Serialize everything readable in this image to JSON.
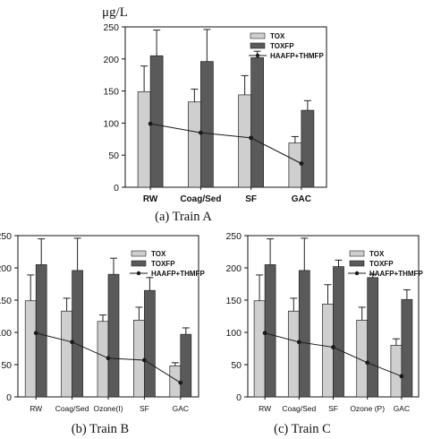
{
  "figure": {
    "unit_label": "μg/L",
    "captions": [
      "(a) Train A",
      "(b) Train B",
      "(c) Train C"
    ]
  },
  "colors": {
    "tox_fill": "#cfcfcf",
    "toxfp_fill": "#5a5a5a",
    "line": "#1a1a1a"
  },
  "chart_data": [
    {
      "type": "bar",
      "caption": "(a) Train A",
      "ylabel": "μg/L",
      "ylim": [
        0,
        250
      ],
      "yticks": [
        0,
        50,
        100,
        150,
        200,
        250
      ],
      "categories": [
        "RW",
        "Coag/Sed",
        "SF",
        "GAC"
      ],
      "legend_position": "top-right",
      "series": [
        {
          "name": "TOX",
          "type": "bar",
          "values": [
            149,
            133,
            144,
            69
          ],
          "errors": [
            40,
            20,
            30,
            10
          ]
        },
        {
          "name": "TOXFP",
          "type": "bar",
          "values": [
            205,
            196,
            202,
            120
          ],
          "errors": [
            40,
            50,
            10,
            15
          ]
        },
        {
          "name": "HAAFP+THMFP",
          "type": "line",
          "values": [
            99,
            85,
            77,
            37
          ]
        }
      ]
    },
    {
      "type": "bar",
      "caption": "(b) Train B",
      "ylabel": "",
      "ylim": [
        0,
        250
      ],
      "yticks": [
        0,
        50,
        100,
        150,
        200,
        250
      ],
      "categories": [
        "RW",
        "Coag/Sed",
        "Ozone(I)",
        "SF",
        "GAC"
      ],
      "legend_position": "top-right",
      "series": [
        {
          "name": "TOX",
          "type": "bar",
          "values": [
            149,
            133,
            117,
            119,
            48
          ],
          "errors": [
            40,
            20,
            10,
            20,
            5
          ]
        },
        {
          "name": "TOXFP",
          "type": "bar",
          "values": [
            205,
            196,
            190,
            165,
            97
          ],
          "errors": [
            40,
            50,
            25,
            20,
            10
          ]
        },
        {
          "name": "HAAFP+THMFP",
          "type": "line",
          "values": [
            99,
            85,
            60,
            57,
            22
          ]
        }
      ]
    },
    {
      "type": "bar",
      "caption": "(c) Train C",
      "ylabel": "",
      "ylim": [
        0,
        250
      ],
      "yticks": [
        0,
        50,
        100,
        150,
        200,
        250
      ],
      "categories": [
        "RW",
        "Coag/Sed",
        "SF",
        "Ozone (P)",
        "GAC"
      ],
      "legend_position": "top-right",
      "series": [
        {
          "name": "TOX",
          "type": "bar",
          "values": [
            149,
            133,
            144,
            119,
            80
          ],
          "errors": [
            40,
            20,
            30,
            20,
            10
          ]
        },
        {
          "name": "TOXFP",
          "type": "bar",
          "values": [
            205,
            196,
            202,
            185,
            151
          ],
          "errors": [
            40,
            50,
            10,
            5,
            15
          ]
        },
        {
          "name": "HAAFP+THMFP",
          "type": "line",
          "values": [
            99,
            85,
            77,
            53,
            32
          ]
        }
      ]
    }
  ]
}
